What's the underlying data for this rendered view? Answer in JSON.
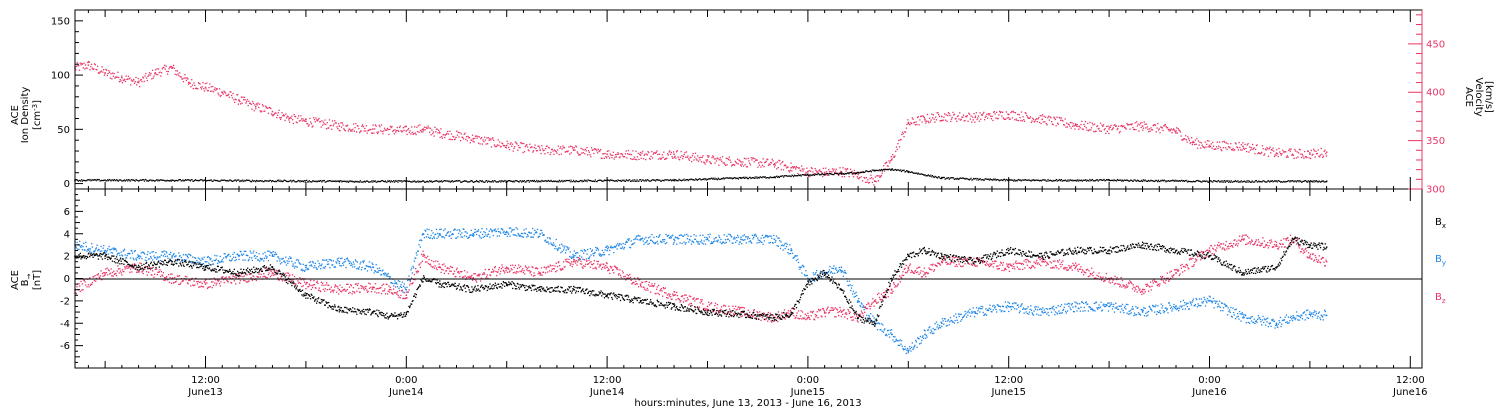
{
  "xaxis": {
    "title": "hours:minutes, June 13, 2013 - June 16, 2013",
    "ticks": [
      {
        "hour": 12,
        "time": "12:00",
        "day": "June13"
      },
      {
        "hour": 24,
        "time": "0:00",
        "day": "June14"
      },
      {
        "hour": 36,
        "time": "12:00",
        "day": "June14"
      },
      {
        "hour": 48,
        "time": "0:00",
        "day": "June15"
      },
      {
        "hour": 60,
        "time": "12:00",
        "day": "June15"
      },
      {
        "hour": 72,
        "time": "0:00",
        "day": "June16"
      },
      {
        "hour": 84,
        "time": "12:00",
        "day": "June16"
      }
    ]
  },
  "colors": {
    "bx": "#000000",
    "by": "#1e86e6",
    "bz": "#e83564",
    "velocity": "#e83564",
    "density": "#000000"
  },
  "chart_data": [
    {
      "type": "scatter",
      "xlabel": "hours:minutes, June 13, 2013 - June 16, 2013",
      "x_unit": "hours since 2013-06-13 00:00",
      "xlim": [
        4.2,
        84.7
      ],
      "ylabel_left": [
        "ACE",
        "Ion Density",
        "[cm^-3]"
      ],
      "ylabel_right": [
        "ACE",
        "Velocity",
        "[km/s]"
      ],
      "ylim_left": [
        -5,
        160
      ],
      "ylim_right": [
        300,
        485
      ],
      "yticks_left": [
        0,
        50,
        100,
        150
      ],
      "yticks_right": [
        300,
        350,
        400,
        450
      ],
      "series": [
        {
          "name": "Velocity",
          "axis": "right",
          "x": [
            4.2,
            5,
            6,
            7,
            8,
            9,
            10,
            11,
            12,
            13,
            14,
            15,
            16,
            17,
            18,
            20,
            22,
            24,
            25,
            26,
            28,
            30,
            32,
            34,
            36,
            38,
            40,
            42,
            44,
            46,
            47,
            48,
            49,
            50,
            51,
            52,
            53,
            54,
            55,
            56,
            58,
            60,
            62,
            64,
            66,
            68,
            70,
            71,
            72,
            74,
            76,
            78,
            79
          ],
          "y": [
            425,
            428,
            420,
            415,
            410,
            420,
            425,
            410,
            405,
            400,
            392,
            385,
            380,
            373,
            370,
            365,
            362,
            360,
            362,
            358,
            352,
            345,
            340,
            340,
            336,
            335,
            336,
            330,
            328,
            326,
            322,
            318,
            317,
            318,
            315,
            308,
            330,
            368,
            372,
            375,
            374,
            377,
            372,
            366,
            362,
            365,
            360,
            348,
            345,
            344,
            337,
            336,
            338
          ]
        },
        {
          "name": "Ion Density",
          "axis": "left",
          "x": [
            4.2,
            10,
            20,
            30,
            40,
            44,
            46,
            48,
            50,
            51,
            52,
            53,
            54,
            56,
            60,
            66,
            72,
            78,
            79
          ],
          "y": [
            3,
            3,
            2,
            2,
            3,
            5,
            6,
            8,
            9,
            10,
            12,
            13,
            11,
            5,
            3,
            3,
            2,
            2,
            2
          ]
        }
      ]
    },
    {
      "type": "scatter",
      "xlabel": "hours:minutes, June 13, 2013 - June 16, 2013",
      "x_unit": "hours since 2013-06-13 00:00",
      "xlim": [
        4.2,
        84.7
      ],
      "ylabel": [
        "ACE",
        "B",
        "[nT]"
      ],
      "ylim": [
        -8,
        8
      ],
      "yticks": [
        -6,
        -4,
        -2,
        0,
        2,
        4,
        6
      ],
      "legend": [
        "Bx",
        "By",
        "Bz"
      ],
      "legend_position": "right",
      "series": [
        {
          "name": "Bx",
          "x": [
            4.2,
            6,
            8,
            10,
            12,
            14,
            16,
            18,
            20,
            22,
            23,
            24,
            25,
            26,
            28,
            30,
            32,
            34,
            36,
            38,
            40,
            42,
            44,
            46,
            47,
            48,
            49,
            50,
            51,
            52,
            53,
            54,
            55,
            56,
            58,
            60,
            62,
            64,
            66,
            68,
            70,
            72,
            74,
            76,
            77,
            78,
            79
          ],
          "y": [
            2,
            2,
            1,
            1.5,
            1,
            0.5,
            1,
            -1.5,
            -2.8,
            -3,
            -3.4,
            -3.2,
            0,
            -0.5,
            -1,
            -0.5,
            -1,
            -1,
            -1.5,
            -2,
            -2.5,
            -3,
            -3.2,
            -3.5,
            -3.2,
            -0.5,
            0.5,
            -1,
            -3.5,
            -4,
            0,
            2,
            2.5,
            2,
            1.5,
            2.5,
            2,
            2.5,
            2.5,
            3,
            2.5,
            2,
            0.5,
            1,
            3.5,
            3,
            2.8
          ]
        },
        {
          "name": "By",
          "x": [
            4.2,
            6,
            8,
            10,
            12,
            14,
            16,
            18,
            20,
            22,
            23,
            24,
            25,
            26,
            28,
            30,
            32,
            34,
            36,
            38,
            40,
            42,
            44,
            46,
            47,
            48,
            49,
            50,
            51,
            52,
            53,
            54,
            55,
            56,
            58,
            60,
            62,
            64,
            66,
            68,
            70,
            72,
            74,
            76,
            77,
            78,
            79
          ],
          "y": [
            3,
            2.5,
            2,
            2,
            1.5,
            2,
            2,
            1,
            1.5,
            1,
            0,
            -1,
            4,
            4,
            4,
            4.2,
            4,
            2,
            2.5,
            3.5,
            3.5,
            3.5,
            3.5,
            3.5,
            2.5,
            0,
            0.5,
            1,
            -2,
            -4,
            -5,
            -6.5,
            -5,
            -4,
            -3,
            -2.5,
            -3,
            -2.5,
            -2.5,
            -3,
            -2.5,
            -2,
            -3.5,
            -4,
            -3.5,
            -3.2,
            -3.3
          ]
        },
        {
          "name": "Bz",
          "x": [
            4.2,
            6,
            8,
            10,
            12,
            14,
            16,
            18,
            20,
            22,
            23,
            24,
            25,
            26,
            28,
            30,
            32,
            34,
            36,
            38,
            40,
            42,
            44,
            46,
            47,
            48,
            49,
            50,
            51,
            52,
            53,
            54,
            55,
            56,
            58,
            60,
            62,
            64,
            66,
            68,
            70,
            72,
            74,
            76,
            77,
            78,
            79
          ],
          "y": [
            -1,
            0.5,
            1,
            0,
            -0.5,
            0,
            0.5,
            -0.5,
            -1,
            -0.8,
            -1,
            -1.5,
            2,
            1,
            0,
            1,
            0.5,
            1.5,
            1,
            -0.5,
            -1.5,
            -2.5,
            -3,
            -3.5,
            -3,
            -3.5,
            -3,
            -3,
            -3.5,
            -2,
            -1,
            1,
            0.5,
            1.5,
            1.5,
            1,
            1.5,
            1,
            0,
            -1,
            0.5,
            2.5,
            3.5,
            3,
            3.5,
            2,
            1.5
          ]
        }
      ]
    }
  ]
}
